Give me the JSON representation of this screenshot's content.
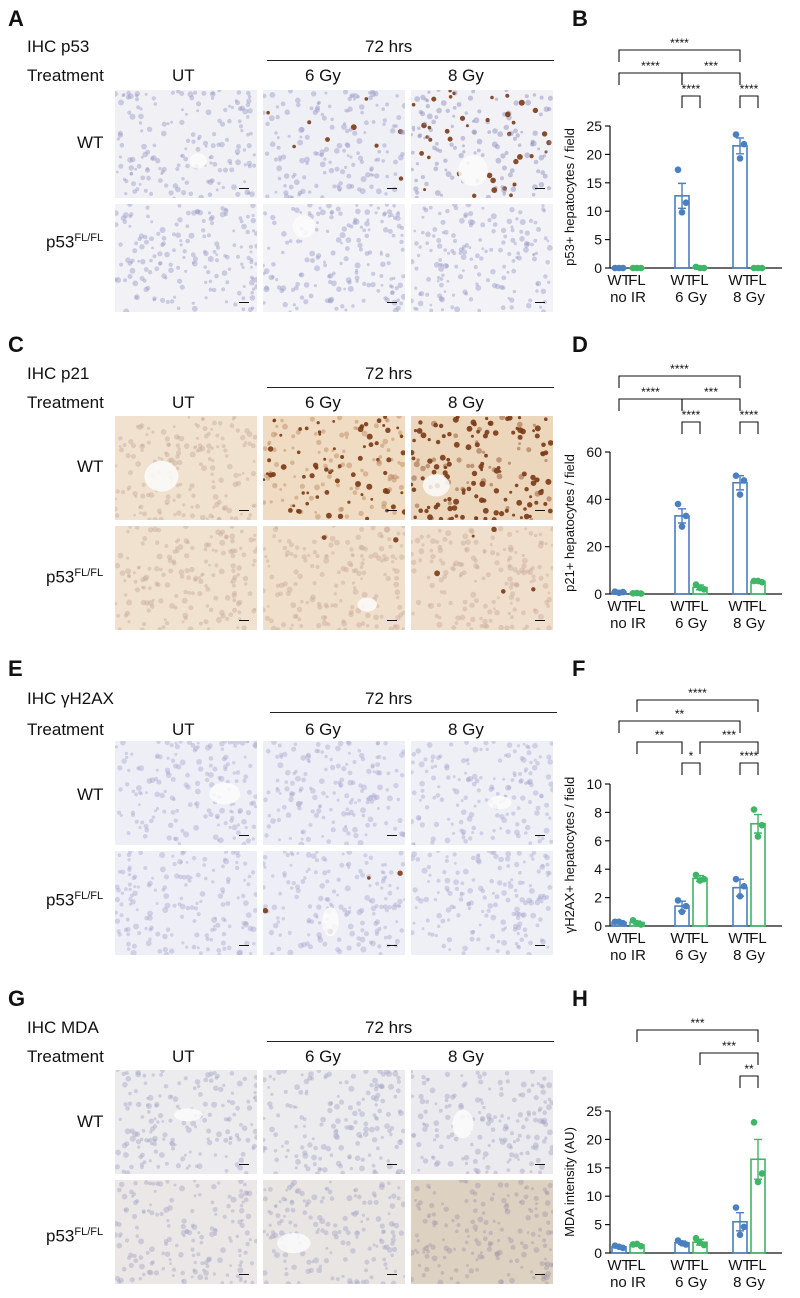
{
  "colors": {
    "wt": "#4a7fc0",
    "fl": "#3fb567",
    "stroke": "#111111"
  },
  "common": {
    "treatment_label": "Treatment",
    "time_label": "72 hrs",
    "conditions": [
      "UT",
      "6 Gy",
      "8 Gy"
    ],
    "row_wt": "WT",
    "row_fl_base": "p53",
    "row_fl_sup": "FL/FL"
  },
  "panels": [
    {
      "letter": "A",
      "title": "IHC p53",
      "micro_bg": [
        "#f1f1f5",
        "#efeff6",
        "#f1f1f6",
        "#f2f2f6",
        "#f2f2f7",
        "#f3f3f7"
      ],
      "micro_dots": [
        "#9a9ac8",
        "#9a9ac8",
        "#8a8ab8",
        "#9a9ac8",
        "#9a9ac8",
        "#9a9ac8"
      ],
      "brown": [
        0,
        0.06,
        0.18,
        0,
        0,
        0
      ]
    },
    {
      "letter": "C",
      "title": "IHC p21",
      "micro_bg": [
        "#f1e2d0",
        "#f0dcc2",
        "#ecd6bc",
        "#f1e2d0",
        "#f0dfcb",
        "#f0dfcc"
      ],
      "micro_dots": [
        "#c7aa98",
        "#b7825b",
        "#8a4a25",
        "#c7aa98",
        "#c7aa98",
        "#c7aa98"
      ],
      "brown": [
        0,
        0.45,
        0.7,
        0,
        0.02,
        0.02
      ]
    },
    {
      "letter": "E",
      "title": "IHC γH2AX",
      "micro_bg": [
        "#eeeef6",
        "#eeeef6",
        "#efeff6",
        "#eeeef6",
        "#eeeef6",
        "#efeff6"
      ],
      "micro_dots": [
        "#a8a8d0",
        "#a8a8d0",
        "#a8a8d0",
        "#a8a8d0",
        "#a8a8d0",
        "#a8a8d0"
      ],
      "brown": [
        0,
        0,
        0,
        0,
        0.02,
        0
      ]
    },
    {
      "letter": "G",
      "title": "IHC MDA",
      "micro_bg": [
        "#ecebee",
        "#ecebee",
        "#ebeaee",
        "#ebe7e6",
        "#e9e5e3",
        "#ddd1c1"
      ],
      "micro_dots": [
        "#a6a6c6",
        "#a6a6c6",
        "#a6a6c6",
        "#a6a6c6",
        "#a6a6c6",
        "#a69aa8"
      ],
      "brown": [
        0,
        0,
        0,
        0,
        0,
        0
      ]
    }
  ],
  "chart_data": [
    {
      "letter": "B",
      "type": "bar",
      "ylabel": "p53+ hepatocytes / field",
      "ylim": [
        0,
        25
      ],
      "yticks": [
        0,
        5,
        10,
        15,
        20,
        25
      ],
      "groups": [
        "no IR",
        "6 Gy",
        "8 Gy"
      ],
      "genotypes": [
        "WT",
        "FL"
      ],
      "means": [
        [
          0,
          0
        ],
        [
          12.7,
          0.1
        ],
        [
          21.5,
          0
        ]
      ],
      "sem": [
        [
          0,
          0
        ],
        [
          2.2,
          0.1
        ],
        [
          1.4,
          0
        ]
      ],
      "points": [
        [
          [
            0,
            0,
            0
          ],
          [
            0,
            0,
            0
          ]
        ],
        [
          [
            17.3,
            11.5,
            9.8
          ],
          [
            0.2,
            0,
            0
          ]
        ],
        [
          [
            23.5,
            21.8,
            19.3
          ],
          [
            0,
            0,
            0
          ]
        ]
      ],
      "significance": [
        {
          "from": [
            0,
            0
          ],
          "to": [
            2,
            0
          ],
          "label": "****",
          "level": 1
        },
        {
          "from": [
            0,
            0
          ],
          "to": [
            1,
            0
          ],
          "label": "****",
          "level": 2
        },
        {
          "from": [
            1,
            0
          ],
          "to": [
            2,
            0
          ],
          "label": "***",
          "level": 2
        },
        {
          "from": [
            1,
            0
          ],
          "to": [
            1,
            1
          ],
          "label": "****",
          "level": 3
        },
        {
          "from": [
            2,
            0
          ],
          "to": [
            2,
            1
          ],
          "label": "****",
          "level": 3
        }
      ]
    },
    {
      "letter": "D",
      "type": "bar",
      "ylabel": "p21+ hepatocytes / field",
      "ylim": [
        0,
        60
      ],
      "yticks": [
        0,
        20,
        40,
        60
      ],
      "groups": [
        "no IR",
        "6 Gy",
        "8 Gy"
      ],
      "genotypes": [
        "WT",
        "FL"
      ],
      "means": [
        [
          0.8,
          0.3
        ],
        [
          33,
          2.8
        ],
        [
          47,
          5.3
        ]
      ],
      "sem": [
        [
          0.2,
          0.1
        ],
        [
          3,
          1
        ],
        [
          3,
          0.5
        ]
      ],
      "points": [
        [
          [
            1,
            0.8,
            0.5
          ],
          [
            0.3,
            0.2,
            0.4
          ]
        ],
        [
          [
            38,
            33,
            28.5
          ],
          [
            4,
            2,
            2.5
          ]
        ],
        [
          [
            50,
            48,
            42
          ],
          [
            5.5,
            5,
            5.5
          ]
        ]
      ],
      "significance": [
        {
          "from": [
            0,
            0
          ],
          "to": [
            2,
            0
          ],
          "label": "****",
          "level": 1
        },
        {
          "from": [
            0,
            0
          ],
          "to": [
            1,
            0
          ],
          "label": "****",
          "level": 2
        },
        {
          "from": [
            1,
            0
          ],
          "to": [
            2,
            0
          ],
          "label": "***",
          "level": 2
        },
        {
          "from": [
            1,
            0
          ],
          "to": [
            1,
            1
          ],
          "label": "****",
          "level": 3
        },
        {
          "from": [
            2,
            0
          ],
          "to": [
            2,
            1
          ],
          "label": "****",
          "level": 3
        }
      ]
    },
    {
      "letter": "F",
      "type": "bar",
      "ylabel": "γH2AX+ hepatocytes / field",
      "ylim": [
        0,
        10
      ],
      "yticks": [
        0,
        2,
        4,
        6,
        8,
        10
      ],
      "groups": [
        "no IR",
        "6 Gy",
        "8 Gy"
      ],
      "genotypes": [
        "WT",
        "FL"
      ],
      "means": [
        [
          0.25,
          0.25
        ],
        [
          1.4,
          3.35
        ],
        [
          2.7,
          7.2
        ]
      ],
      "sem": [
        [
          0.1,
          0.1
        ],
        [
          0.35,
          0.2
        ],
        [
          0.6,
          0.65
        ]
      ],
      "points": [
        [
          [
            0.3,
            0.2,
            0.3
          ],
          [
            0.4,
            0.1,
            0.2
          ]
        ],
        [
          [
            1.8,
            1.4,
            1.0
          ],
          [
            3.6,
            3.3,
            3.2
          ]
        ],
        [
          [
            3.3,
            2.8,
            2.1
          ],
          [
            8.2,
            7.1,
            6.3
          ]
        ]
      ],
      "significance": [
        {
          "from": [
            0,
            1
          ],
          "to": [
            2,
            1
          ],
          "label": "****",
          "level": 1
        },
        {
          "from": [
            0,
            0
          ],
          "to": [
            2,
            0
          ],
          "label": "**",
          "level": 2
        },
        {
          "from": [
            0,
            1
          ],
          "to": [
            1,
            0
          ],
          "label": "**",
          "level": 3
        },
        {
          "from": [
            1,
            1
          ],
          "to": [
            2,
            1
          ],
          "label": "***",
          "level": 3
        },
        {
          "from": [
            1,
            0
          ],
          "to": [
            1,
            1
          ],
          "label": "*",
          "level": 4
        },
        {
          "from": [
            2,
            0
          ],
          "to": [
            2,
            1
          ],
          "label": "****",
          "level": 4
        }
      ]
    },
    {
      "letter": "H",
      "type": "bar",
      "ylabel": "MDA intensity (AU)",
      "ylim": [
        0,
        25
      ],
      "yticks": [
        0,
        5,
        10,
        15,
        20,
        25
      ],
      "groups": [
        "no IR",
        "6 Gy",
        "8 Gy"
      ],
      "genotypes": [
        "WT",
        "FL"
      ],
      "means": [
        [
          1.1,
          1.4
        ],
        [
          1.8,
          1.9
        ],
        [
          5.5,
          16.5
        ]
      ],
      "sem": [
        [
          0.2,
          0.2
        ],
        [
          0.3,
          0.5
        ],
        [
          1.6,
          3.5
        ]
      ],
      "points": [
        [
          [
            1.3,
            0.9,
            1.1
          ],
          [
            1.5,
            1.2,
            1.6
          ]
        ],
        [
          [
            2.2,
            1.5,
            1.7
          ],
          [
            2.6,
            1.4,
            1.8
          ]
        ],
        [
          [
            8,
            4.6,
            3.2
          ],
          [
            23,
            14,
            12.5
          ]
        ]
      ],
      "significance": [
        {
          "from": [
            0,
            1
          ],
          "to": [
            2,
            1
          ],
          "label": "***",
          "level": 1
        },
        {
          "from": [
            1,
            1
          ],
          "to": [
            2,
            1
          ],
          "label": "***",
          "level": 2
        },
        {
          "from": [
            2,
            0
          ],
          "to": [
            2,
            1
          ],
          "label": "**",
          "level": 3
        }
      ]
    }
  ]
}
